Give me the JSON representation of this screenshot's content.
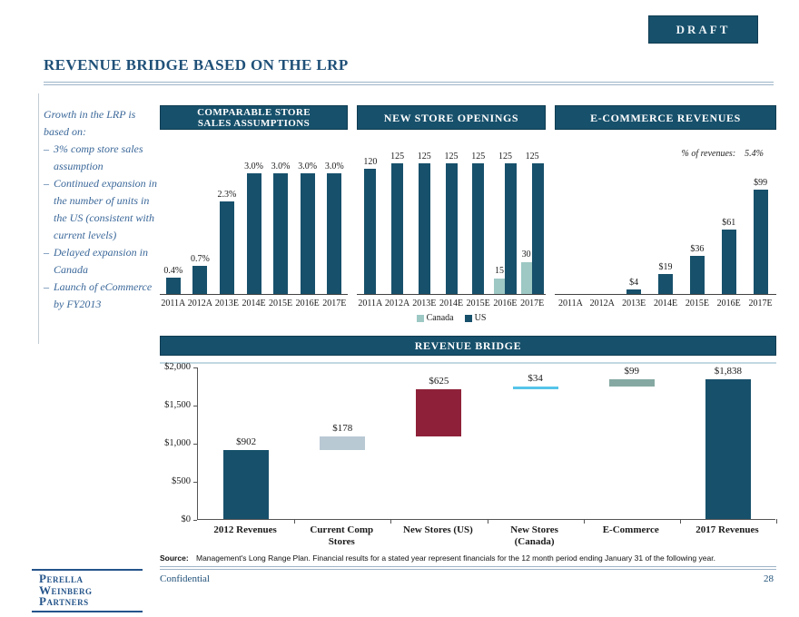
{
  "badge_label": "DRAFT",
  "page_title": "REVENUE BRIDGE BASED ON THE LRP",
  "sidebar": {
    "dash": "–",
    "intro": "Growth in the LRP is based on:",
    "bullets": [
      "3% comp store sales assumption",
      "Continued expansion in the number of units in the US (consistent with current levels)",
      "Delayed expansion in Canada",
      "Launch of eCommerce by FY2013"
    ]
  },
  "colors": {
    "navy": "#17506B",
    "canada": "#9DC8C4",
    "maroon": "#8E2139",
    "cyan": "#56C4E9",
    "steel": "#B9C9D4",
    "sage": "#85A9A2",
    "accent_blue": "#1F5078"
  },
  "chart_data": [
    {
      "type": "bar",
      "title_lines": [
        "COMPARABLE STORE",
        "SALES ASSUMPTIONS"
      ],
      "categories": [
        "2011A",
        "2012A",
        "2013E",
        "2014E",
        "2015E",
        "2016E",
        "2017E"
      ],
      "values": [
        0.4,
        0.7,
        2.3,
        3.0,
        3.0,
        3.0,
        3.0
      ],
      "labels": [
        "0.4%",
        "0.7%",
        "2.3%",
        "3.0%",
        "3.0%",
        "3.0%",
        "3.0%"
      ],
      "ylim": [
        0,
        3.0
      ],
      "bar_color": "navy",
      "grid": false,
      "xlabel": "",
      "ylabel": ""
    },
    {
      "type": "bar",
      "subtype": "grouped",
      "title_lines": [
        "NEW STORE OPENINGS"
      ],
      "categories": [
        "2011A",
        "2012A",
        "2013E",
        "2014E",
        "2015E",
        "2016E",
        "2017E"
      ],
      "series": [
        {
          "name": "Canada",
          "color": "canada",
          "values": [
            null,
            null,
            null,
            null,
            null,
            15,
            30
          ]
        },
        {
          "name": "US",
          "color": "navy",
          "values": [
            120,
            125,
            125,
            125,
            125,
            125,
            125
          ]
        }
      ],
      "legend_position": "bottom",
      "ylim": [
        0,
        125
      ],
      "grid": false
    },
    {
      "type": "bar",
      "title_lines": [
        "E-COMMERCE REVENUES"
      ],
      "annotation_label": "% of revenues:",
      "annotation_value": "5.4%",
      "categories": [
        "2011A",
        "2012A",
        "2013E",
        "2014E",
        "2015E",
        "2016E",
        "2017E"
      ],
      "values": [
        0,
        0,
        4,
        19,
        36,
        61,
        99
      ],
      "labels": [
        "",
        "",
        "$4",
        "$19",
        "$36",
        "$61",
        "$99"
      ],
      "ylim": [
        0,
        99
      ],
      "bar_color": "navy",
      "grid": false
    },
    {
      "type": "waterfall",
      "title_lines": [
        "REVENUE BRIDGE"
      ],
      "categories": [
        [
          "2012 Revenues"
        ],
        [
          "Current Comp",
          "Stores"
        ],
        [
          "New Stores (US)"
        ],
        [
          "New Stores",
          "(Canada)"
        ],
        [
          "E-Commerce"
        ],
        [
          "2017 Revenues"
        ]
      ],
      "bars": [
        {
          "label": "$902",
          "start": 0,
          "end": 902,
          "color": "navy"
        },
        {
          "label": "$178",
          "start": 902,
          "end": 1080,
          "color": "steel"
        },
        {
          "label": "$625",
          "start": 1080,
          "end": 1705,
          "color": "maroon"
        },
        {
          "label": "$34",
          "start": 1705,
          "end": 1739,
          "color": "cyan"
        },
        {
          "label": "$99",
          "start": 1739,
          "end": 1838,
          "color": "sage"
        },
        {
          "label": "$1,838",
          "start": 0,
          "end": 1838,
          "color": "navy"
        }
      ],
      "y_ticks": [
        "$2,000",
        "$1,500",
        "$1,000",
        "$500",
        "$0"
      ],
      "ylim": [
        0,
        2000
      ],
      "grid": false
    }
  ],
  "footer": {
    "source_label": "Source:",
    "source_text": "Management's Long Range Plan. Financial results for a stated year represent financials for the 12 month period ending January 31 of the following year.",
    "confidential": "Confidential",
    "page_number": "28"
  },
  "logo_lines": [
    "Perella",
    "Weinberg",
    "Partners"
  ]
}
